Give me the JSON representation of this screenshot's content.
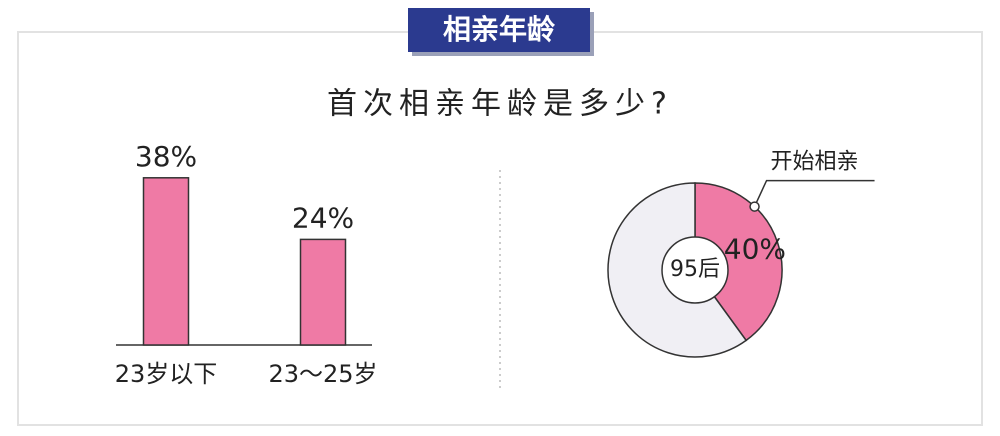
{
  "header": {
    "badge": "相亲年龄",
    "title": "首次相亲年龄是多少?"
  },
  "chart_data": [
    {
      "type": "bar",
      "categories": [
        "23岁以下",
        "23～25岁"
      ],
      "values": [
        38,
        24
      ],
      "value_labels": [
        "38%",
        "24%"
      ],
      "color": "#ef7aa5"
    },
    {
      "type": "donut",
      "center_label": "95后",
      "categories": [
        "开始相亲",
        null
      ],
      "values": [
        40,
        60
      ],
      "value_labels": [
        "40%",
        null
      ],
      "colors": [
        "#ef7aa5",
        "#f0eff4"
      ]
    }
  ]
}
